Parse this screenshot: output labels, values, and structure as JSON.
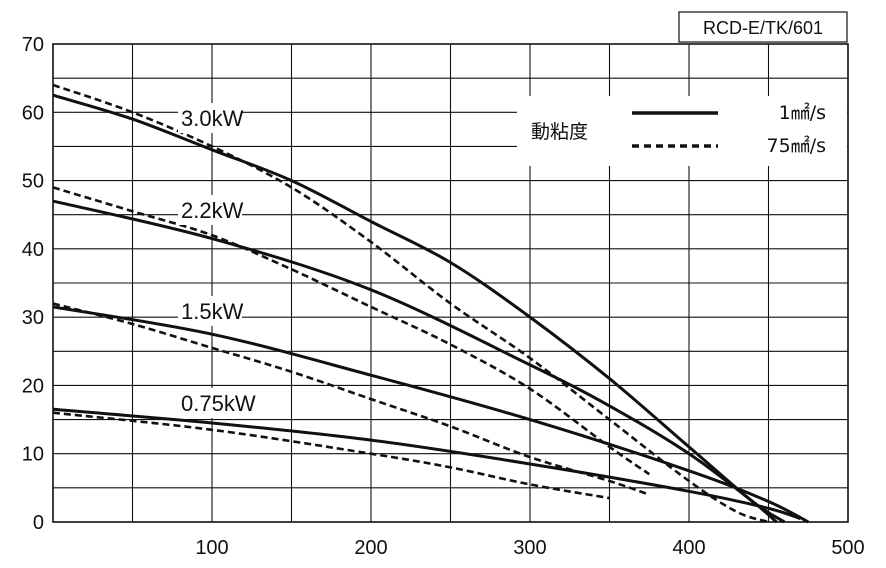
{
  "chart_data": {
    "type": "line",
    "model_code": "RCD-E/TK/601",
    "xlim": [
      0,
      500
    ],
    "ylim": [
      0,
      70
    ],
    "x_ticks": [
      100,
      200,
      300,
      400,
      500
    ],
    "y_ticks": [
      0,
      10,
      20,
      30,
      40,
      50,
      60,
      70
    ],
    "grid": true,
    "legend": {
      "title": "動粘度",
      "position": "top-right",
      "entries": [
        {
          "label": "1㎟/s",
          "style": "solid"
        },
        {
          "label": "75㎟/s",
          "style": "dashed"
        }
      ]
    },
    "curve_labels": [
      "3.0kW",
      "2.2kW",
      "1.5kW",
      "0.75kW"
    ],
    "series": [
      {
        "label": "3.0kW",
        "style": "solid",
        "x": [
          0,
          50,
          100,
          150,
          200,
          250,
          300,
          350,
          400,
          440,
          460
        ],
        "y": [
          62.5,
          59,
          54.5,
          50,
          44,
          38,
          30,
          21,
          11,
          3,
          0
        ]
      },
      {
        "label": "3.0kW",
        "style": "dashed",
        "x": [
          0,
          50,
          100,
          150,
          200,
          250,
          300,
          350,
          400,
          430,
          450
        ],
        "y": [
          64,
          60,
          55,
          49,
          41,
          32,
          24,
          15,
          6,
          1.5,
          0
        ]
      },
      {
        "label": "2.2kW",
        "style": "solid",
        "x": [
          0,
          100,
          200,
          300,
          350,
          400,
          440,
          455
        ],
        "y": [
          47,
          41.5,
          34,
          23,
          17,
          10,
          3,
          0
        ]
      },
      {
        "label": "2.2kW",
        "style": "dashed",
        "x": [
          0,
          50,
          100,
          150,
          200,
          250,
          300,
          350,
          375
        ],
        "y": [
          49,
          45.5,
          42,
          37,
          31.5,
          26,
          19.5,
          11,
          7
        ]
      },
      {
        "label": "1.5kW",
        "style": "solid",
        "x": [
          0,
          100,
          200,
          300,
          400,
          450,
          475
        ],
        "y": [
          31.5,
          27.5,
          21.5,
          15,
          7.5,
          3,
          0
        ]
      },
      {
        "label": "1.5kW",
        "style": "dashed",
        "x": [
          0,
          50,
          100,
          150,
          200,
          250,
          300,
          350,
          375
        ],
        "y": [
          32,
          29,
          25.5,
          22,
          18,
          14,
          9.5,
          6,
          4
        ]
      },
      {
        "label": "0.75kW",
        "style": "solid",
        "x": [
          0,
          100,
          200,
          300,
          400,
          450,
          470
        ],
        "y": [
          16.5,
          14.5,
          12,
          8.5,
          4.5,
          2,
          0.5
        ]
      },
      {
        "label": "0.75kW",
        "style": "dashed",
        "x": [
          0,
          100,
          200,
          250,
          300,
          350
        ],
        "y": [
          16,
          13.5,
          10,
          8,
          5.5,
          3.5
        ]
      }
    ]
  }
}
